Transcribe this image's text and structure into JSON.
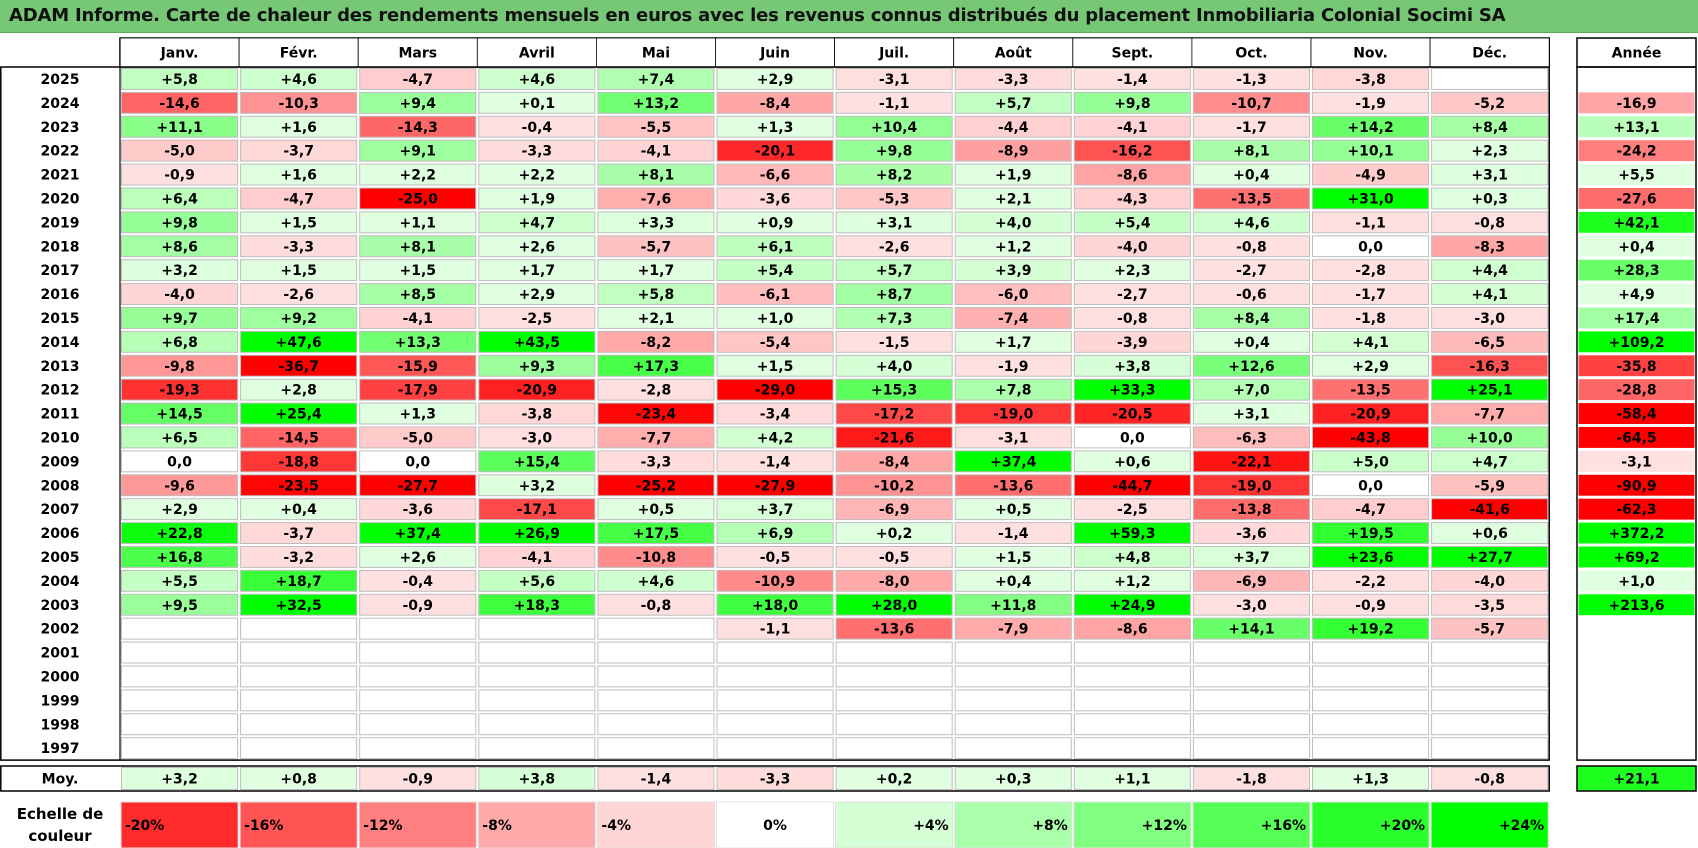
{
  "title": "ADAM Informe. Carte de chaleur des rendements mensuels en euros avec les revenus connus distribués du placement Inmobiliaria Colonial Socimi SA",
  "colors": {
    "title_background": "#76c776",
    "positive_max": "#00ff00",
    "negative_max": "#ff0000",
    "neutral": "#ffffff",
    "grid": "#bdbdbd",
    "border": "#000000"
  },
  "chart_data": {
    "type": "heatmap",
    "months": [
      "Janv.",
      "Févr.",
      "Mars",
      "Avril",
      "Mai",
      "Juin",
      "Juil.",
      "Août",
      "Sept.",
      "Oct.",
      "Nov.",
      "Déc."
    ],
    "year_header": "Année",
    "average_label": "Moy.",
    "rows": [
      {
        "year": "2025",
        "values": [
          "+5,8",
          "+4,6",
          "-4,7",
          "+4,6",
          "+7,4",
          "+2,9",
          "-3,1",
          "-3,3",
          "-1,4",
          "-1,3",
          "-3,8",
          ""
        ],
        "annual": ""
      },
      {
        "year": "2024",
        "values": [
          "-14,6",
          "-10,3",
          "+9,4",
          "+0,1",
          "+13,2",
          "-8,4",
          "-1,1",
          "+5,7",
          "+9,8",
          "-10,7",
          "-1,9",
          "-5,2"
        ],
        "annual": "-16,9"
      },
      {
        "year": "2023",
        "values": [
          "+11,1",
          "+1,6",
          "-14,3",
          "-0,4",
          "-5,5",
          "+1,3",
          "+10,4",
          "-4,4",
          "-4,1",
          "-1,7",
          "+14,2",
          "+8,4"
        ],
        "annual": "+13,1"
      },
      {
        "year": "2022",
        "values": [
          "-5,0",
          "-3,7",
          "+9,1",
          "-3,3",
          "-4,1",
          "-20,1",
          "+9,8",
          "-8,9",
          "-16,2",
          "+8,1",
          "+10,1",
          "+2,3"
        ],
        "annual": "-24,2"
      },
      {
        "year": "2021",
        "values": [
          "-0,9",
          "+1,6",
          "+2,2",
          "+2,2",
          "+8,1",
          "-6,6",
          "+8,2",
          "+1,9",
          "-8,6",
          "+0,4",
          "-4,9",
          "+3,1"
        ],
        "annual": "+5,5"
      },
      {
        "year": "2020",
        "values": [
          "+6,4",
          "-4,7",
          "-25,0",
          "+1,9",
          "-7,6",
          "-3,6",
          "-5,3",
          "+2,1",
          "-4,3",
          "-13,5",
          "+31,0",
          "+0,3"
        ],
        "annual": "-27,6"
      },
      {
        "year": "2019",
        "values": [
          "+9,8",
          "+1,5",
          "+1,1",
          "+4,7",
          "+3,3",
          "+0,9",
          "+3,1",
          "+4,0",
          "+5,4",
          "+4,6",
          "-1,1",
          "-0,8"
        ],
        "annual": "+42,1"
      },
      {
        "year": "2018",
        "values": [
          "+8,6",
          "-3,3",
          "+8,1",
          "+2,6",
          "-5,7",
          "+6,1",
          "-2,6",
          "+1,2",
          "-4,0",
          "-0,8",
          "0,0",
          "-8,3"
        ],
        "annual": "+0,4"
      },
      {
        "year": "2017",
        "values": [
          "+3,2",
          "+1,5",
          "+1,5",
          "+1,7",
          "+1,7",
          "+5,4",
          "+5,7",
          "+3,9",
          "+2,3",
          "-2,7",
          "-2,8",
          "+4,4"
        ],
        "annual": "+28,3"
      },
      {
        "year": "2016",
        "values": [
          "-4,0",
          "-2,6",
          "+8,5",
          "+2,9",
          "+5,8",
          "-6,1",
          "+8,7",
          "-6,0",
          "-2,7",
          "-0,6",
          "-1,7",
          "+4,1"
        ],
        "annual": "+4,9"
      },
      {
        "year": "2015",
        "values": [
          "+9,7",
          "+9,2",
          "-4,1",
          "-2,5",
          "+2,1",
          "+1,0",
          "+7,3",
          "-7,4",
          "-0,8",
          "+8,4",
          "-1,8",
          "-3,0"
        ],
        "annual": "+17,4"
      },
      {
        "year": "2014",
        "values": [
          "+6,8",
          "+47,6",
          "+13,3",
          "+43,5",
          "-8,2",
          "-5,4",
          "-1,5",
          "+1,7",
          "-3,9",
          "+0,4",
          "+4,1",
          "-6,5"
        ],
        "annual": "+109,2"
      },
      {
        "year": "2013",
        "values": [
          "-9,8",
          "-36,7",
          "-15,9",
          "+9,3",
          "+17,3",
          "+1,5",
          "+4,0",
          "-1,9",
          "+3,8",
          "+12,6",
          "+2,9",
          "-16,3"
        ],
        "annual": "-35,8"
      },
      {
        "year": "2012",
        "values": [
          "-19,3",
          "+2,8",
          "-17,9",
          "-20,9",
          "-2,8",
          "-29,0",
          "+15,3",
          "+7,8",
          "+33,3",
          "+7,0",
          "-13,5",
          "+25,1"
        ],
        "annual": "-28,8"
      },
      {
        "year": "2011",
        "values": [
          "+14,5",
          "+25,4",
          "+1,3",
          "-3,8",
          "-23,4",
          "-3,4",
          "-17,2",
          "-19,0",
          "-20,5",
          "+3,1",
          "-20,9",
          "-7,7"
        ],
        "annual": "-58,4"
      },
      {
        "year": "2010",
        "values": [
          "+6,5",
          "-14,5",
          "-5,0",
          "-3,0",
          "-7,7",
          "+4,2",
          "-21,6",
          "-3,1",
          "0,0",
          "-6,3",
          "-43,8",
          "+10,0"
        ],
        "annual": "-64,5"
      },
      {
        "year": "2009",
        "values": [
          "0,0",
          "-18,8",
          "0,0",
          "+15,4",
          "-3,3",
          "-1,4",
          "-8,4",
          "+37,4",
          "+0,6",
          "-22,1",
          "+5,0",
          "+4,7"
        ],
        "annual": "-3,1"
      },
      {
        "year": "2008",
        "values": [
          "-9,6",
          "-23,5",
          "-27,7",
          "+3,2",
          "-25,2",
          "-27,9",
          "-10,2",
          "-13,6",
          "-44,7",
          "-19,0",
          "0,0",
          "-5,9"
        ],
        "annual": "-90,9"
      },
      {
        "year": "2007",
        "values": [
          "+2,9",
          "+0,4",
          "-3,6",
          "-17,1",
          "+0,5",
          "+3,7",
          "-6,9",
          "+0,5",
          "-2,5",
          "-13,8",
          "-4,7",
          "-41,6"
        ],
        "annual": "-62,3"
      },
      {
        "year": "2006",
        "values": [
          "+22,8",
          "-3,7",
          "+37,4",
          "+26,9",
          "+17,5",
          "+6,9",
          "+0,2",
          "-1,4",
          "+59,3",
          "-3,6",
          "+19,5",
          "+0,6"
        ],
        "annual": "+372,2"
      },
      {
        "year": "2005",
        "values": [
          "+16,8",
          "-3,2",
          "+2,6",
          "-4,1",
          "-10,8",
          "-0,5",
          "-0,5",
          "+1,5",
          "+4,8",
          "+3,7",
          "+23,6",
          "+27,7"
        ],
        "annual": "+69,2"
      },
      {
        "year": "2004",
        "values": [
          "+5,5",
          "+18,7",
          "-0,4",
          "+5,6",
          "+4,6",
          "-10,9",
          "-8,0",
          "+0,4",
          "+1,2",
          "-6,9",
          "-2,2",
          "-4,0"
        ],
        "annual": "+1,0"
      },
      {
        "year": "2003",
        "values": [
          "+9,5",
          "+32,5",
          "-0,9",
          "+18,3",
          "-0,8",
          "+18,0",
          "+28,0",
          "+11,8",
          "+24,9",
          "-3,0",
          "-0,9",
          "-3,5"
        ],
        "annual": "+213,6"
      },
      {
        "year": "2002",
        "values": [
          "",
          "",
          "",
          "",
          "",
          "-1,1",
          "-13,6",
          "-7,9",
          "-8,6",
          "+14,1",
          "+19,2",
          "-5,7"
        ],
        "annual": ""
      },
      {
        "year": "2001",
        "values": [
          "",
          "",
          "",
          "",
          "",
          "",
          "",
          "",
          "",
          "",
          "",
          ""
        ],
        "annual": ""
      },
      {
        "year": "2000",
        "values": [
          "",
          "",
          "",
          "",
          "",
          "",
          "",
          "",
          "",
          "",
          "",
          ""
        ],
        "annual": ""
      },
      {
        "year": "1999",
        "values": [
          "",
          "",
          "",
          "",
          "",
          "",
          "",
          "",
          "",
          "",
          "",
          ""
        ],
        "annual": ""
      },
      {
        "year": "1998",
        "values": [
          "",
          "",
          "",
          "",
          "",
          "",
          "",
          "",
          "",
          "",
          "",
          ""
        ],
        "annual": ""
      },
      {
        "year": "1997",
        "values": [
          "",
          "",
          "",
          "",
          "",
          "",
          "",
          "",
          "",
          "",
          "",
          ""
        ],
        "annual": ""
      }
    ],
    "average": {
      "values": [
        "+3,2",
        "+0,8",
        "-0,9",
        "+3,8",
        "-1,4",
        "-3,3",
        "+0,2",
        "+0,3",
        "+1,1",
        "-1,8",
        "+1,3",
        "-0,8"
      ],
      "annual": "+21,1"
    },
    "scale": {
      "label_line1": "Echelle de",
      "label_line2": "couleur",
      "steps": [
        "-20%",
        "-16%",
        "-12%",
        "-8%",
        "-4%",
        "0%",
        "+4%",
        "+8%",
        "+12%",
        "+16%",
        "+20%",
        "+24%"
      ]
    }
  }
}
